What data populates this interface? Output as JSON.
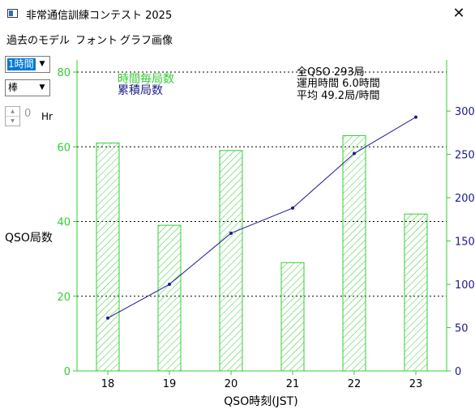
{
  "window": {
    "title": "非常通信訓練コンテスト 2025",
    "close_glyph": "✕"
  },
  "menu": [
    "過去のモデル",
    "フォント",
    "グラフ画像"
  ],
  "controls": {
    "interval_select": "1時間",
    "chart_type_select": "棒",
    "hours_value": "0",
    "hours_unit": "Hr"
  },
  "summary": {
    "line1": "全QSO 293局",
    "line2": "運用時間 6.0時間",
    "line3": "平均 49.2局/時間"
  },
  "chart_data": {
    "type": "bar",
    "categories": [
      "18",
      "19",
      "20",
      "21",
      "22",
      "23"
    ],
    "series": [
      {
        "name": "時間毎局数",
        "type": "bar",
        "axis": "left",
        "values": [
          61,
          39,
          59,
          29,
          63,
          42
        ]
      },
      {
        "name": "累積局数",
        "type": "line",
        "axis": "right",
        "values": [
          61,
          100,
          159,
          188,
          251,
          293
        ]
      }
    ],
    "xlabel": "QSO時刻(JST)",
    "ylabel": "QSO局数",
    "ylim": [
      0,
      80
    ],
    "y_ticks": [
      0,
      20,
      40,
      60,
      80
    ],
    "y2lim": [
      0,
      345
    ],
    "y2_ticks": [
      0,
      50,
      100,
      150,
      200,
      250,
      300
    ],
    "grid": "horizontal dotted",
    "legend_placement": "top-left",
    "colors": {
      "bar": "#33cc33",
      "line": "#1a1a8c",
      "axis": "#33cc33",
      "grid": "#000000",
      "legend_bar_text": "#33cc33",
      "legend_line_text": "#1a1a8c"
    }
  }
}
